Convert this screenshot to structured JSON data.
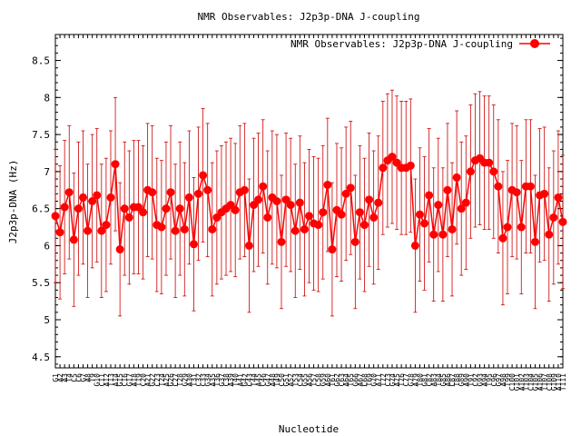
{
  "colors": {
    "series": "#ff0000",
    "errorbar": "#cc0000",
    "axis": "#000000",
    "background": "#ffffff"
  },
  "chart_data": {
    "type": "line",
    "title": "NMR Observables: J2p3p-DNA J-coupling",
    "xlabel": "Nucleotide",
    "ylabel": "J2p3p-DNA (Hz)",
    "ylim": [
      4.35,
      8.85
    ],
    "yticks": [
      4.5,
      5,
      5.5,
      6,
      6.5,
      7,
      7.5,
      8,
      8.5
    ],
    "grid": false,
    "legend": {
      "placement": "top-right"
    },
    "series": [
      {
        "name": "NMR Observables: J2p3p-DNA J-coupling",
        "error": 0.9,
        "values": [
          6.4,
          6.18,
          6.52,
          6.72,
          6.08,
          6.5,
          6.65,
          6.2,
          6.6,
          6.68,
          6.2,
          6.28,
          6.65,
          7.1,
          5.95,
          6.5,
          6.38,
          6.52,
          6.52,
          6.45,
          6.75,
          6.72,
          6.28,
          6.25,
          6.5,
          6.72,
          6.2,
          6.5,
          6.22,
          6.65,
          6.02,
          6.7,
          6.95,
          6.75,
          6.22,
          6.38,
          6.45,
          6.5,
          6.55,
          6.48,
          6.72,
          6.75,
          6.0,
          6.55,
          6.62,
          6.8,
          6.38,
          6.65,
          6.6,
          6.05,
          6.62,
          6.55,
          6.2,
          6.58,
          6.22,
          6.4,
          6.3,
          6.28,
          6.45,
          6.82,
          5.95,
          6.48,
          6.42,
          6.7,
          6.78,
          6.05,
          6.45,
          6.28,
          6.62,
          6.38,
          6.58,
          7.05,
          7.15,
          7.2,
          7.12,
          7.05,
          7.05,
          7.08,
          6.0,
          6.42,
          6.3,
          6.68,
          6.15,
          6.55,
          6.15,
          6.75,
          6.22,
          6.92,
          6.5,
          6.58,
          7.0,
          7.15,
          7.18,
          7.12,
          7.12,
          7.0,
          6.8,
          6.1,
          6.25,
          6.75,
          6.72,
          6.25,
          6.8,
          6.8,
          6.05,
          6.68,
          6.7,
          6.15,
          6.38,
          6.65,
          6.32
        ]
      }
    ],
    "x_tick_labels": [
      "G1",
      "A2",
      "A3",
      "T4",
      "C5",
      "C6",
      "G7",
      "A8",
      "T9",
      "G10",
      "C11",
      "A12",
      "T13",
      "A14",
      "G15",
      "C16",
      "G17",
      "A18",
      "T19",
      "C20",
      "A21",
      "G22",
      "C23",
      "T24",
      "A25",
      "G26",
      "C27",
      "T28",
      "G29",
      "A30",
      "T31",
      "C32",
      "C33",
      "G34",
      "A35",
      "T36",
      "G37",
      "C38",
      "A39",
      "T40",
      "A41",
      "G42",
      "C43",
      "T44",
      "A45",
      "C46",
      "G47",
      "A48",
      "T49",
      "C50",
      "G51",
      "A52",
      "T53",
      "C54",
      "G55",
      "A56",
      "T57",
      "C58",
      "G59",
      "A60",
      "T61",
      "G62",
      "C63",
      "A64",
      "T65",
      "G66",
      "A67",
      "C68",
      "T69",
      "G70",
      "A71",
      "T72",
      "C73",
      "G74",
      "A75",
      "T76",
      "C77",
      "G78",
      "A79",
      "T80",
      "G81",
      "C82",
      "A83",
      "T84",
      "G85",
      "A86",
      "C87",
      "T88",
      "G89",
      "A90",
      "T91",
      "C92",
      "G93",
      "A94",
      "T95",
      "C96",
      "G97",
      "A98",
      "T99",
      "C100",
      "G101",
      "A102",
      "T103",
      "C104",
      "G105",
      "A106",
      "T107",
      "C108",
      "G109",
      "A110",
      "T111"
    ]
  }
}
